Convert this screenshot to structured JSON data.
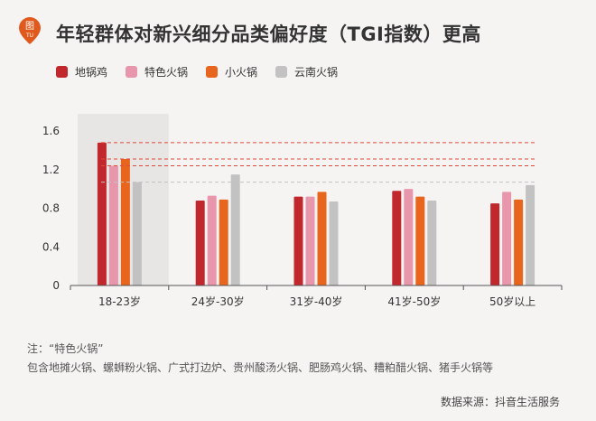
{
  "header": {
    "logo_text_top": "图",
    "logo_text_bottom": "TU",
    "title": "年轻群体对新兴细分品类偏好度（TGI指数）更高"
  },
  "colors": {
    "series": [
      "#c0282d",
      "#e896ab",
      "#e8651d",
      "#c2c2c2"
    ],
    "highlight_band": "#e8e6e4",
    "reference_line": "#e0483a",
    "logo": "#e05a1e"
  },
  "chart_data": {
    "type": "bar",
    "categories": [
      "18-23岁",
      "24岁-30岁",
      "31岁-40岁",
      "41岁-50岁",
      "50岁以上"
    ],
    "series": [
      {
        "name": "地锅鸡",
        "values": [
          1.48,
          0.88,
          0.92,
          0.98,
          0.85
        ]
      },
      {
        "name": "特色火锅",
        "values": [
          1.24,
          0.93,
          0.92,
          1.0,
          0.97
        ]
      },
      {
        "name": "小火锅",
        "values": [
          1.31,
          0.89,
          0.97,
          0.92,
          0.89
        ]
      },
      {
        "name": "云南火锅",
        "values": [
          1.07,
          1.15,
          0.87,
          0.88,
          1.04
        ]
      }
    ],
    "y_ticks": [
      "0",
      "0.4",
      "0.8",
      "1.2",
      "1.6"
    ],
    "ylim": [
      0,
      1.6
    ],
    "reference_lines": [
      1.48,
      1.31,
      1.24,
      1.07
    ],
    "highlight_category": "18-23岁",
    "legend_position": "top-left"
  },
  "notes": {
    "line1": "注：“特色火锅”",
    "line2": "包含地摊火锅、螺蛳粉火锅、广式打边炉、贵州酸汤火锅、肥肠鸡火锅、糟粕醋火锅、猪手火锅等"
  },
  "source": "数据来源：抖音生活服务"
}
